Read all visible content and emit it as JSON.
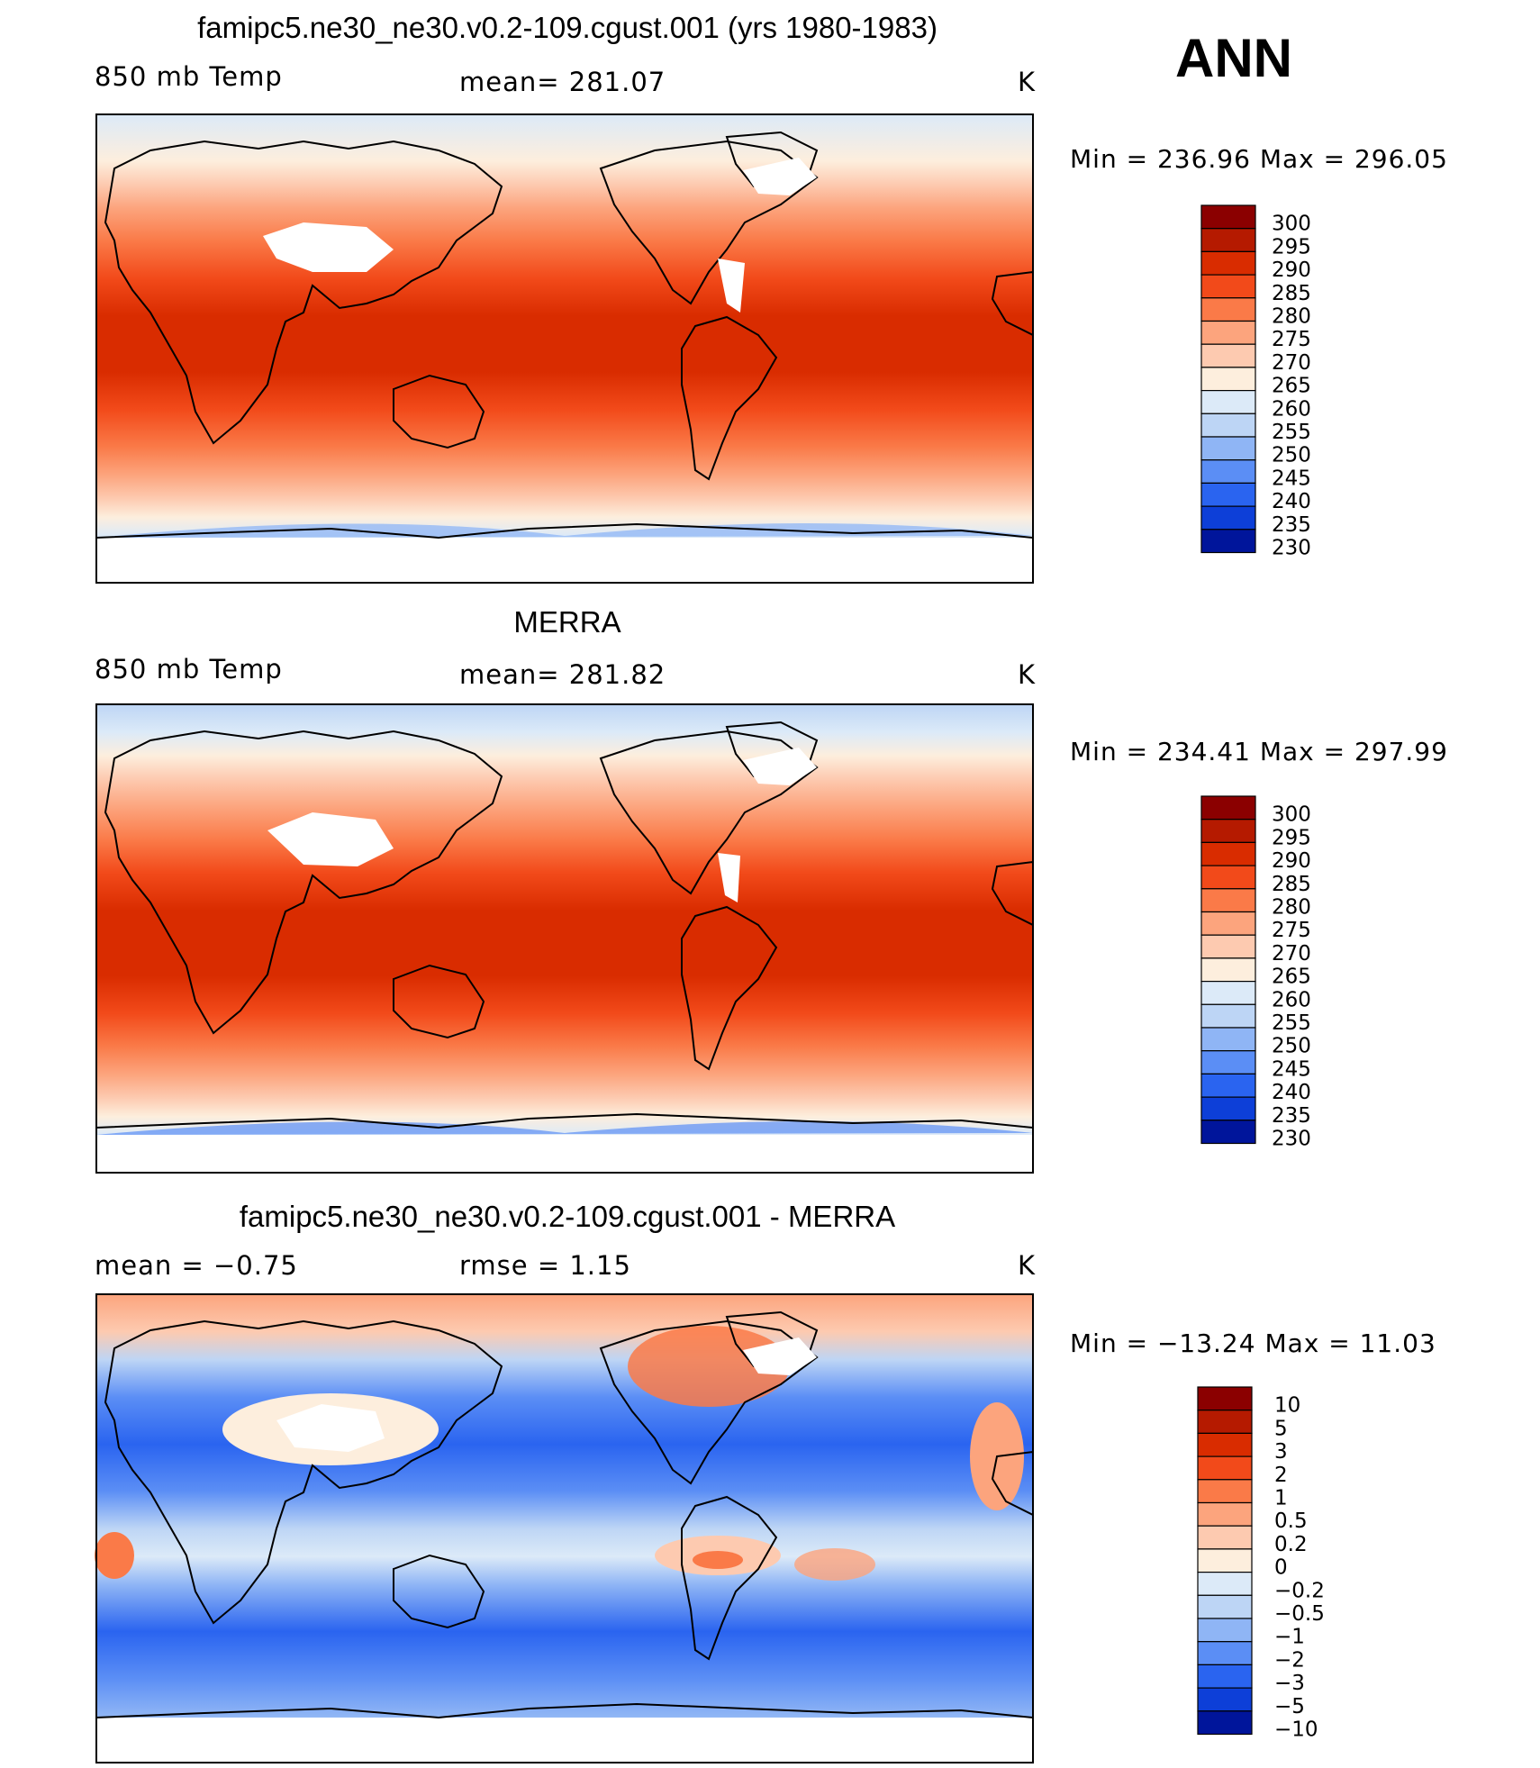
{
  "season": "ANN",
  "panels": [
    {
      "title": "famipc5.ne30_ne30.v0.2-109.cgust.001 (yrs 1980-1983)",
      "left_label": "850 mb Temp",
      "center_label": "mean= 281.07",
      "units": "K",
      "minmax": "Min = 236.96 Max = 296.05",
      "colorbar_labels": [
        "300",
        "295",
        "290",
        "285",
        "280",
        "275",
        "270",
        "265",
        "260",
        "255",
        "250",
        "245",
        "240",
        "235",
        "230"
      ],
      "colorbar_colors": [
        "#8b0000",
        "#b51a00",
        "#d92c00",
        "#f24a1a",
        "#fa7a48",
        "#fca47d",
        "#fdcab0",
        "#fdeedd",
        "#dceaf8",
        "#bdd5f5",
        "#8fb5f5",
        "#5b8ef5",
        "#2a64f0",
        "#0d3fd8",
        "#00159b"
      ]
    },
    {
      "title": "MERRA",
      "left_label": "850 mb Temp",
      "center_label": "mean= 281.82",
      "units": "K",
      "minmax": "Min = 234.41 Max = 297.99",
      "colorbar_labels": [
        "300",
        "295",
        "290",
        "285",
        "280",
        "275",
        "270",
        "265",
        "260",
        "255",
        "250",
        "245",
        "240",
        "235",
        "230"
      ],
      "colorbar_colors": [
        "#8b0000",
        "#b51a00",
        "#d92c00",
        "#f24a1a",
        "#fa7a48",
        "#fca47d",
        "#fdcab0",
        "#fdeedd",
        "#dceaf8",
        "#bdd5f5",
        "#8fb5f5",
        "#5b8ef5",
        "#2a64f0",
        "#0d3fd8",
        "#00159b"
      ]
    },
    {
      "title": "famipc5.ne30_ne30.v0.2-109.cgust.001 - MERRA",
      "left_label": "mean =   −0.75",
      "center_label": "rmse =    1.15",
      "units": "K",
      "minmax": "Min = −13.24 Max =   11.03",
      "colorbar_labels": [
        "10",
        "5",
        "3",
        "2",
        "1",
        "0.5",
        "0.2",
        "0",
        "−0.2",
        "−0.5",
        "−1",
        "−2",
        "−3",
        "−5",
        "−10"
      ],
      "colorbar_colors": [
        "#8b0000",
        "#b51a00",
        "#d92c00",
        "#f24a1a",
        "#fa7a48",
        "#fca47d",
        "#fdcab0",
        "#fdeedd",
        "#dceaf8",
        "#bdd5f5",
        "#8fb5f5",
        "#5b8ef5",
        "#2a64f0",
        "#0d3fd8",
        "#00159b"
      ]
    }
  ]
}
